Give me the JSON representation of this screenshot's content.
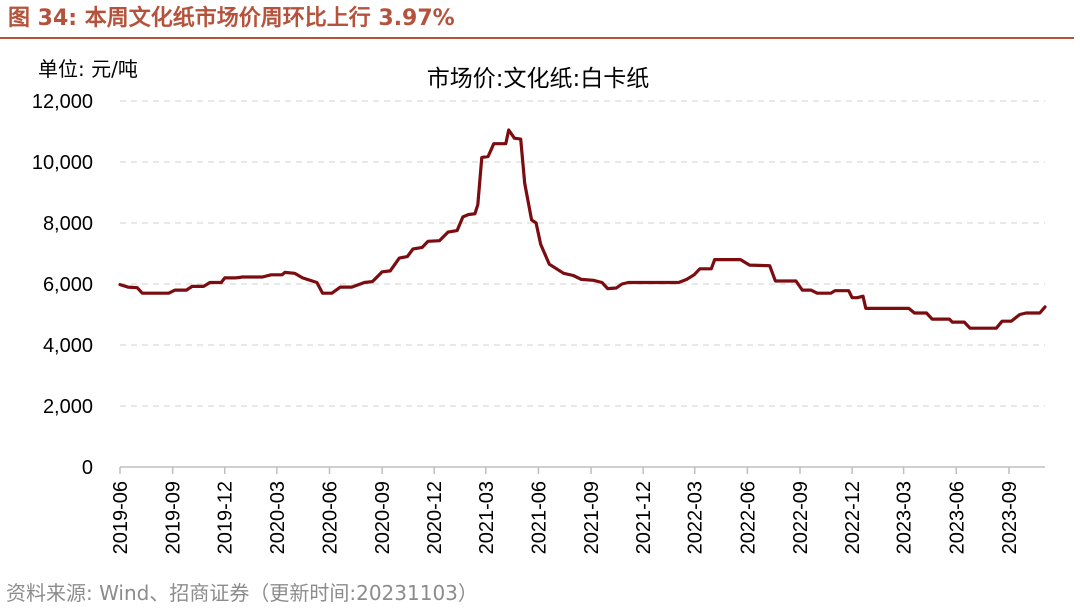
{
  "header": {
    "figure_title": "图 34:  本周文化纸市场价周环比上行 3.97%"
  },
  "footer": {
    "source": "资料来源:  Wind、招商证券（更新时间:20231103）"
  },
  "colors": {
    "accent": "#b5523b",
    "line": "#7b0d10",
    "grid": "#d9d9d9",
    "source_text": "#8c8c8c"
  },
  "chart_data": {
    "type": "line",
    "title": "市场价:文化纸:白卡纸",
    "unit_label": "单位:  元/吨",
    "ylim": [
      0,
      12000
    ],
    "yticks": [
      0,
      2000,
      4000,
      6000,
      8000,
      10000,
      12000
    ],
    "ytick_labels": [
      "0",
      "2,000",
      "4,000",
      "6,000",
      "8,000",
      "10,000",
      "12,000"
    ],
    "grid": "horizontal dashed",
    "legend": "none",
    "xlim": [
      "2019-06-01",
      "2023-11-03"
    ],
    "xtick_labels": [
      "2019-06",
      "2019-09",
      "2019-12",
      "2020-03",
      "2020-06",
      "2020-09",
      "2020-12",
      "2021-03",
      "2021-06",
      "2021-09",
      "2021-12",
      "2022-03",
      "2022-06",
      "2022-09",
      "2022-12",
      "2023-03",
      "2023-06",
      "2023-09"
    ],
    "series": [
      {
        "points": [
          [
            "2019-06-01",
            5980
          ],
          [
            "2019-06-15",
            5900
          ],
          [
            "2019-07-01",
            5880
          ],
          [
            "2019-07-10",
            5700
          ],
          [
            "2019-08-01",
            5700
          ],
          [
            "2019-08-25",
            5700
          ],
          [
            "2019-09-05",
            5800
          ],
          [
            "2019-09-25",
            5800
          ],
          [
            "2019-10-05",
            5920
          ],
          [
            "2019-10-25",
            5920
          ],
          [
            "2019-11-05",
            6050
          ],
          [
            "2019-11-25",
            6050
          ],
          [
            "2019-12-01",
            6200
          ],
          [
            "2019-12-20",
            6200
          ],
          [
            "2020-01-01",
            6230
          ],
          [
            "2020-02-05",
            6230
          ],
          [
            "2020-02-20",
            6300
          ],
          [
            "2020-03-10",
            6300
          ],
          [
            "2020-03-15",
            6380
          ],
          [
            "2020-04-01",
            6350
          ],
          [
            "2020-04-15",
            6200
          ],
          [
            "2020-05-10",
            6050
          ],
          [
            "2020-05-20",
            5700
          ],
          [
            "2020-06-05",
            5700
          ],
          [
            "2020-06-20",
            5900
          ],
          [
            "2020-07-10",
            5900
          ],
          [
            "2020-08-01",
            6050
          ],
          [
            "2020-08-15",
            6080
          ],
          [
            "2020-09-01",
            6400
          ],
          [
            "2020-09-15",
            6430
          ],
          [
            "2020-10-01",
            6850
          ],
          [
            "2020-10-15",
            6900
          ],
          [
            "2020-10-25",
            7150
          ],
          [
            "2020-11-10",
            7200
          ],
          [
            "2020-11-20",
            7400
          ],
          [
            "2020-12-10",
            7420
          ],
          [
            "2020-12-25",
            7700
          ],
          [
            "2021-01-10",
            7750
          ],
          [
            "2021-01-20",
            8200
          ],
          [
            "2021-01-30",
            8280
          ],
          [
            "2021-02-10",
            8300
          ],
          [
            "2021-02-15",
            8600
          ],
          [
            "2021-02-22",
            10150
          ],
          [
            "2021-03-05",
            10180
          ],
          [
            "2021-03-15",
            10600
          ],
          [
            "2021-04-05",
            10600
          ],
          [
            "2021-04-10",
            11050
          ],
          [
            "2021-04-20",
            10780
          ],
          [
            "2021-05-01",
            10750
          ],
          [
            "2021-05-08",
            9300
          ],
          [
            "2021-05-20",
            8100
          ],
          [
            "2021-05-28",
            8000
          ],
          [
            "2021-06-05",
            7300
          ],
          [
            "2021-06-20",
            6650
          ],
          [
            "2021-07-15",
            6350
          ],
          [
            "2021-08-01",
            6280
          ],
          [
            "2021-08-15",
            6150
          ],
          [
            "2021-09-05",
            6120
          ],
          [
            "2021-09-20",
            6050
          ],
          [
            "2021-09-30",
            5850
          ],
          [
            "2021-10-15",
            5870
          ],
          [
            "2021-10-25",
            6000
          ],
          [
            "2021-11-05",
            6050
          ],
          [
            "2021-12-01",
            6050
          ],
          [
            "2022-01-01",
            6050
          ],
          [
            "2022-02-01",
            6050
          ],
          [
            "2022-02-15",
            6150
          ],
          [
            "2022-02-28",
            6300
          ],
          [
            "2022-03-10",
            6500
          ],
          [
            "2022-03-30",
            6500
          ],
          [
            "2022-04-05",
            6800
          ],
          [
            "2022-05-01",
            6800
          ],
          [
            "2022-05-20",
            6800
          ],
          [
            "2022-06-05",
            6620
          ],
          [
            "2022-07-10",
            6600
          ],
          [
            "2022-07-20",
            6100
          ],
          [
            "2022-08-25",
            6100
          ],
          [
            "2022-09-05",
            5800
          ],
          [
            "2022-09-20",
            5800
          ],
          [
            "2022-10-01",
            5700
          ],
          [
            "2022-10-25",
            5700
          ],
          [
            "2022-11-01",
            5780
          ],
          [
            "2022-11-25",
            5780
          ],
          [
            "2022-12-01",
            5550
          ],
          [
            "2022-12-10",
            5550
          ],
          [
            "2022-12-20",
            5600
          ],
          [
            "2022-12-25",
            5200
          ],
          [
            "2023-01-20",
            5200
          ],
          [
            "2023-02-20",
            5200
          ],
          [
            "2023-03-10",
            5200
          ],
          [
            "2023-03-20",
            5050
          ],
          [
            "2023-04-10",
            5050
          ],
          [
            "2023-04-20",
            4850
          ],
          [
            "2023-05-20",
            4850
          ],
          [
            "2023-05-25",
            4750
          ],
          [
            "2023-06-15",
            4750
          ],
          [
            "2023-06-25",
            4550
          ],
          [
            "2023-08-10",
            4550
          ],
          [
            "2023-08-20",
            4780
          ],
          [
            "2023-09-05",
            4780
          ],
          [
            "2023-09-20",
            5000
          ],
          [
            "2023-10-01",
            5050
          ],
          [
            "2023-10-25",
            5050
          ],
          [
            "2023-11-03",
            5250
          ]
        ]
      }
    ]
  }
}
